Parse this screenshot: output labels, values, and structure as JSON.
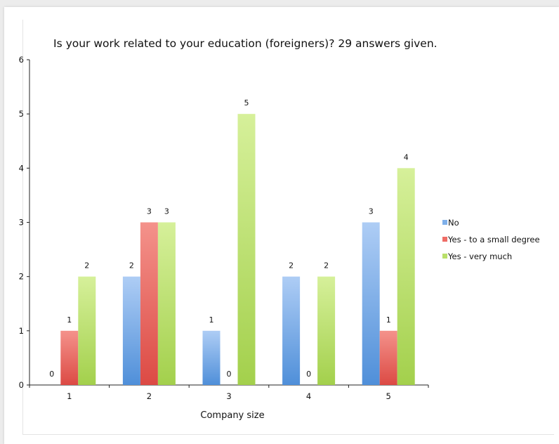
{
  "chart_data": {
    "type": "bar",
    "title": "Is your work related to your education (foreigners)? 29 answers given.",
    "xlabel": "Company size",
    "ylabel": "",
    "categories": [
      "1",
      "2",
      "3",
      "4",
      "5"
    ],
    "ylim": [
      0,
      6
    ],
    "yticks": [
      "0",
      "1",
      "2",
      "3",
      "4",
      "5",
      "6"
    ],
    "grid": false,
    "legend_position": "right",
    "series": [
      {
        "name": "No",
        "values": [
          0,
          2,
          1,
          2,
          3
        ],
        "color": "#7fb0ea"
      },
      {
        "name": "Yes - to a small degree",
        "values": [
          1,
          3,
          0,
          0,
          1
        ],
        "color": "#ef6d66"
      },
      {
        "name": "Yes - very much",
        "values": [
          2,
          3,
          5,
          2,
          4
        ],
        "color": "#b9e06a"
      }
    ]
  }
}
